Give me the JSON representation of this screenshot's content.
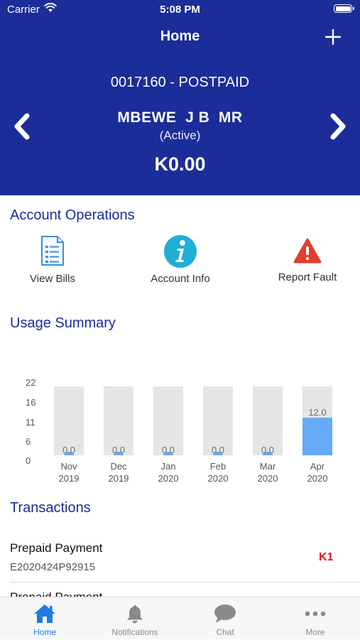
{
  "status_bar": {
    "carrier": "Carrier",
    "time": "5:08 PM"
  },
  "nav": {
    "title": "Home",
    "add_icon": "plus-icon"
  },
  "account": {
    "number": "0017160 - POSTPAID",
    "name": "MBEWE  J B  MR",
    "status": "(Active)",
    "balance": "K0.00"
  },
  "operations": {
    "title": "Account Operations",
    "items": [
      {
        "label": "View Bills",
        "icon": "document-list-icon"
      },
      {
        "label": "Account Info",
        "icon": "info-icon"
      },
      {
        "label": "Report Fault",
        "icon": "warning-icon"
      }
    ]
  },
  "usage": {
    "title": "Usage Summary"
  },
  "chart_data": {
    "type": "bar",
    "categories": [
      "Nov 2019",
      "Dec 2019",
      "Jan 2020",
      "Feb 2020",
      "Mar 2020",
      "Apr 2020"
    ],
    "category_lines": [
      [
        "Nov",
        "2019"
      ],
      [
        "Dec",
        "2019"
      ],
      [
        "Jan",
        "2020"
      ],
      [
        "Feb",
        "2020"
      ],
      [
        "Mar",
        "2020"
      ],
      [
        "Apr",
        "2020"
      ]
    ],
    "values": [
      0.0,
      0.0,
      0.0,
      0.0,
      0.0,
      12.0
    ],
    "value_labels": [
      "0.0",
      "0.0",
      "0.0",
      "0.0",
      "0.0",
      "12.0"
    ],
    "y_ticks": [
      "22",
      "16",
      "11",
      "6",
      "0"
    ],
    "ylim": [
      0,
      22
    ],
    "colors": {
      "track": "#e5e5e5",
      "bar": "#66aaf7",
      "label": "#6f6f6f"
    }
  },
  "transactions": {
    "title": "Transactions",
    "items": [
      {
        "title": "Prepaid Payment",
        "reference": "E2020424P92915",
        "amount": "K1"
      },
      {
        "title": "Prepaid Payment",
        "reference": "",
        "amount": ""
      }
    ]
  },
  "tabbar": {
    "tabs": [
      {
        "label": "Home",
        "icon": "home-icon",
        "active": true
      },
      {
        "label": "Notifications",
        "icon": "bell-icon",
        "active": false
      },
      {
        "label": "Chat",
        "icon": "chat-bubble-icon",
        "active": false
      },
      {
        "label": "More",
        "icon": "more-dots-icon",
        "active": false
      }
    ],
    "active_color": "#1e7be0",
    "inactive_color": "#8a8a8a"
  }
}
